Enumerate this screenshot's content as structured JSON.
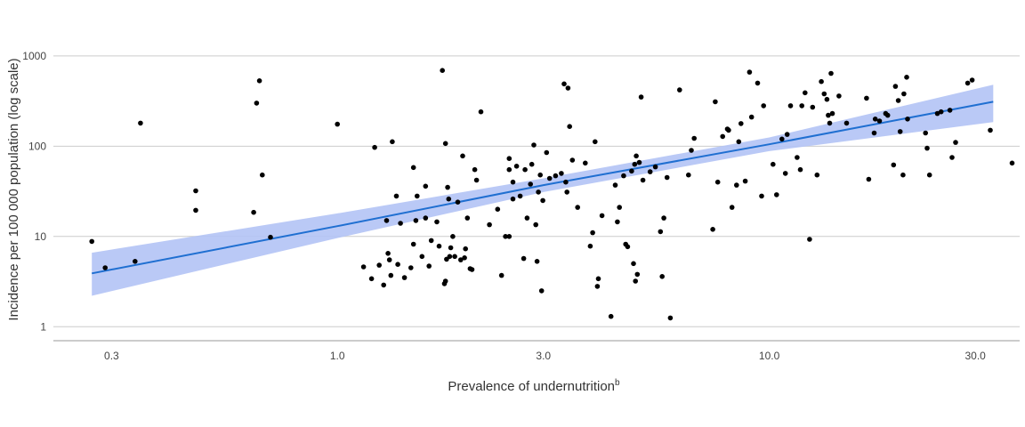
{
  "chart_data": {
    "type": "scatter",
    "title": "",
    "xlabel": "Prevalence of undernutrition",
    "xlabel_superscript": "b",
    "ylabel": "Incidence per 100 000 population (log scale)",
    "x_scale": "log",
    "y_scale": "log",
    "xlim": [
      0.22,
      38
    ],
    "ylim": [
      0.7,
      1400
    ],
    "x_ticks": [
      0.3,
      1.0,
      3.0,
      10.0,
      30.0
    ],
    "x_tick_labels": [
      "0.3",
      "1.0",
      "3.0",
      "10.0",
      "30.0"
    ],
    "y_ticks": [
      1,
      10,
      100,
      1000
    ],
    "y_tick_labels": [
      "1",
      "10",
      "100",
      "1000"
    ],
    "grid": "horizontal",
    "legend": "none",
    "colors": {
      "points": "#000000",
      "fit_line": "#1f6fd1",
      "confidence_band": "#b3c3f5",
      "gridline": "#cccccc",
      "axis": "#999999"
    },
    "fit": {
      "points": [
        [
          0.27,
          3.9
        ],
        [
          1.0,
          13
        ],
        [
          3.0,
          37
        ],
        [
          10.0,
          105
        ],
        [
          33.0,
          310
        ]
      ],
      "band_lower": [
        [
          0.27,
          2.2
        ],
        [
          1.0,
          9.6
        ],
        [
          3.0,
          31
        ],
        [
          10.0,
          88
        ],
        [
          33.0,
          185
        ]
      ],
      "band_upper": [
        [
          0.27,
          6.6
        ],
        [
          1.0,
          18
        ],
        [
          3.0,
          44
        ],
        [
          10.0,
          125
        ],
        [
          33.0,
          480
        ]
      ]
    },
    "series": [
      {
        "points": [
          [
            0.27,
            8.8
          ],
          [
            0.29,
            4.5
          ],
          [
            0.34,
            5.3
          ],
          [
            0.35,
            180
          ],
          [
            0.47,
            32
          ],
          [
            0.47,
            19.5
          ],
          [
            0.64,
            18.5
          ],
          [
            0.65,
            300
          ],
          [
            0.66,
            530
          ],
          [
            0.67,
            48
          ],
          [
            0.7,
            9.8
          ],
          [
            1.0,
            175
          ],
          [
            1.15,
            4.6
          ],
          [
            1.2,
            3.4
          ],
          [
            1.22,
            97
          ],
          [
            1.25,
            4.8
          ],
          [
            1.28,
            2.9
          ],
          [
            1.3,
            15
          ],
          [
            1.31,
            6.5
          ],
          [
            1.32,
            5.5
          ],
          [
            1.33,
            3.7
          ],
          [
            1.34,
            112
          ],
          [
            1.37,
            28
          ],
          [
            1.38,
            4.9
          ],
          [
            1.4,
            14
          ],
          [
            1.43,
            3.5
          ],
          [
            1.48,
            4.5
          ],
          [
            1.5,
            58
          ],
          [
            1.5,
            8.2
          ],
          [
            1.52,
            15
          ],
          [
            1.53,
            28
          ],
          [
            1.57,
            6
          ],
          [
            1.6,
            16
          ],
          [
            1.6,
            36
          ],
          [
            1.63,
            4.7
          ],
          [
            1.65,
            9
          ],
          [
            1.7,
            14.5
          ],
          [
            1.72,
            7.8
          ],
          [
            1.75,
            690
          ],
          [
            1.77,
            3
          ],
          [
            1.78,
            107
          ],
          [
            1.78,
            3.2
          ],
          [
            1.79,
            5.6
          ],
          [
            1.8,
            35
          ],
          [
            1.81,
            26
          ],
          [
            1.82,
            6
          ],
          [
            1.83,
            7.5
          ],
          [
            1.85,
            10
          ],
          [
            1.87,
            6
          ],
          [
            1.9,
            24
          ],
          [
            1.93,
            5.5
          ],
          [
            1.95,
            78
          ],
          [
            1.97,
            5.8
          ],
          [
            1.98,
            7.3
          ],
          [
            2.0,
            16
          ],
          [
            2.03,
            4.4
          ],
          [
            2.05,
            4.3
          ],
          [
            2.08,
            55
          ],
          [
            2.1,
            42
          ],
          [
            2.15,
            240
          ],
          [
            2.25,
            13.5
          ],
          [
            2.35,
            20
          ],
          [
            2.4,
            3.7
          ],
          [
            2.45,
            10
          ],
          [
            2.5,
            10
          ],
          [
            2.5,
            55
          ],
          [
            2.5,
            73
          ],
          [
            2.55,
            40
          ],
          [
            2.55,
            26
          ],
          [
            2.6,
            60
          ],
          [
            2.65,
            28
          ],
          [
            2.7,
            5.7
          ],
          [
            2.72,
            55
          ],
          [
            2.75,
            16
          ],
          [
            2.8,
            38
          ],
          [
            2.82,
            63
          ],
          [
            2.85,
            103
          ],
          [
            2.88,
            13.5
          ],
          [
            2.9,
            5.3
          ],
          [
            2.92,
            31
          ],
          [
            2.95,
            48
          ],
          [
            2.97,
            2.5
          ],
          [
            2.99,
            25
          ],
          [
            3.05,
            85
          ],
          [
            3.1,
            44
          ],
          [
            3.2,
            47
          ],
          [
            3.3,
            50
          ],
          [
            3.35,
            490
          ],
          [
            3.38,
            40
          ],
          [
            3.4,
            31
          ],
          [
            3.42,
            440
          ],
          [
            3.45,
            165
          ],
          [
            3.5,
            70
          ],
          [
            3.6,
            21
          ],
          [
            3.75,
            65
          ],
          [
            3.85,
            7.8
          ],
          [
            3.9,
            11
          ],
          [
            3.95,
            112
          ],
          [
            4.0,
            2.8
          ],
          [
            4.02,
            3.4
          ],
          [
            4.1,
            17
          ],
          [
            4.3,
            1.3
          ],
          [
            4.4,
            37
          ],
          [
            4.45,
            14.5
          ],
          [
            4.5,
            21
          ],
          [
            4.6,
            47
          ],
          [
            4.65,
            8.2
          ],
          [
            4.7,
            7.7
          ],
          [
            4.8,
            53
          ],
          [
            4.85,
            5
          ],
          [
            4.88,
            63
          ],
          [
            4.9,
            3.2
          ],
          [
            4.92,
            78
          ],
          [
            4.95,
            3.8
          ],
          [
            5.0,
            66
          ],
          [
            5.05,
            350
          ],
          [
            5.1,
            42
          ],
          [
            5.3,
            52
          ],
          [
            5.45,
            59
          ],
          [
            5.6,
            11.3
          ],
          [
            5.65,
            3.6
          ],
          [
            5.7,
            16
          ],
          [
            5.8,
            45
          ],
          [
            5.9,
            1.25
          ],
          [
            6.2,
            420
          ],
          [
            6.5,
            48
          ],
          [
            6.6,
            90
          ],
          [
            6.7,
            122
          ],
          [
            7.4,
            12
          ],
          [
            7.5,
            310
          ],
          [
            7.6,
            40
          ],
          [
            7.8,
            128
          ],
          [
            8.0,
            155
          ],
          [
            8.05,
            150
          ],
          [
            8.2,
            21
          ],
          [
            8.4,
            37
          ],
          [
            8.5,
            112
          ],
          [
            8.6,
            178
          ],
          [
            8.8,
            41
          ],
          [
            9.0,
            660
          ],
          [
            9.1,
            210
          ],
          [
            9.4,
            500
          ],
          [
            9.6,
            28
          ],
          [
            9.7,
            280
          ],
          [
            10.2,
            63
          ],
          [
            10.4,
            29
          ],
          [
            10.7,
            120
          ],
          [
            10.9,
            50
          ],
          [
            11.0,
            135
          ],
          [
            11.2,
            280
          ],
          [
            11.6,
            75
          ],
          [
            11.8,
            55
          ],
          [
            11.9,
            280
          ],
          [
            12.1,
            390
          ],
          [
            12.4,
            9.3
          ],
          [
            12.6,
            270
          ],
          [
            12.9,
            48
          ],
          [
            13.2,
            520
          ],
          [
            13.4,
            380
          ],
          [
            13.6,
            330
          ],
          [
            13.7,
            220
          ],
          [
            13.8,
            180
          ],
          [
            13.9,
            640
          ],
          [
            14.0,
            230
          ],
          [
            14.5,
            360
          ],
          [
            15.1,
            180
          ],
          [
            16.8,
            340
          ],
          [
            17.0,
            43
          ],
          [
            17.5,
            140
          ],
          [
            17.6,
            200
          ],
          [
            18.0,
            190
          ],
          [
            18.6,
            230
          ],
          [
            18.8,
            220
          ],
          [
            19.4,
            62
          ],
          [
            19.6,
            460
          ],
          [
            19.9,
            320
          ],
          [
            20.1,
            145
          ],
          [
            20.4,
            48
          ],
          [
            20.5,
            380
          ],
          [
            20.8,
            580
          ],
          [
            20.9,
            200
          ],
          [
            23.0,
            140
          ],
          [
            23.2,
            95
          ],
          [
            23.5,
            48
          ],
          [
            24.5,
            230
          ],
          [
            25.0,
            240
          ],
          [
            26.2,
            250
          ],
          [
            26.5,
            75
          ],
          [
            27.0,
            110
          ],
          [
            28.8,
            500
          ],
          [
            29.5,
            540
          ],
          [
            32.5,
            150
          ],
          [
            36.5,
            65
          ]
        ]
      }
    ]
  }
}
